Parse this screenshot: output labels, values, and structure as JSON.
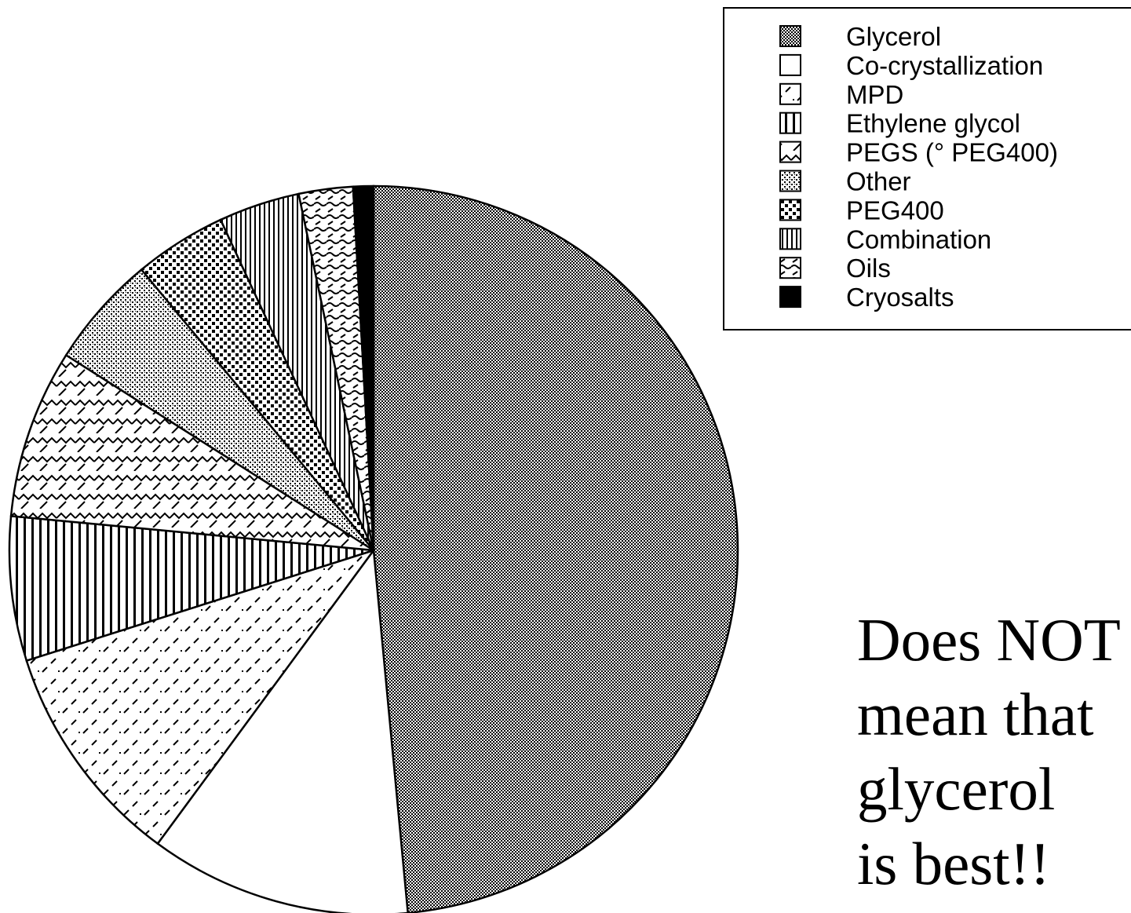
{
  "chart_data": {
    "type": "pie",
    "title": "",
    "start_angle_deg": 0,
    "direction": "clockwise",
    "slices": [
      {
        "label": "Glycerol",
        "value": 48.5,
        "pattern": "checker-fine"
      },
      {
        "label": "Co-crystallization",
        "value": 11.6,
        "pattern": "solid-white"
      },
      {
        "label": "MPD",
        "value": 10.0,
        "pattern": "dashed-diagonal"
      },
      {
        "label": "Ethylene glycol",
        "value": 6.4,
        "pattern": "vertical-wide"
      },
      {
        "label": "PEGS (° PEG400)",
        "value": 7.5,
        "pattern": "zigzag"
      },
      {
        "label": "Other",
        "value": 5.0,
        "pattern": "stipple"
      },
      {
        "label": "PEG400",
        "value": 4.1,
        "pattern": "dots-dense"
      },
      {
        "label": "Combination",
        "value": 3.6,
        "pattern": "vertical-narrow"
      },
      {
        "label": "Oils",
        "value": 2.4,
        "pattern": "wavy"
      },
      {
        "label": "Cryosalts",
        "value": 0.9,
        "pattern": "solid-black"
      }
    ],
    "legend_position": "top-right"
  },
  "note": {
    "lines": [
      "Does NOT",
      "mean that",
      "glycerol",
      "is best!!"
    ]
  }
}
